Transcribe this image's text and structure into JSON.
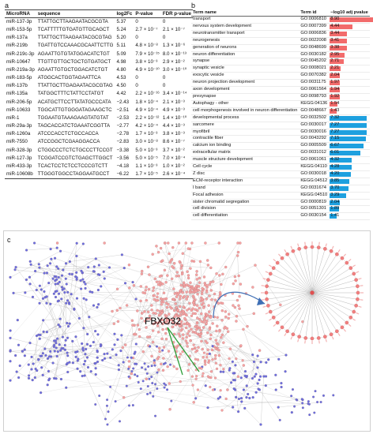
{
  "panel_a": {
    "label": "a",
    "headers": [
      "MicroRNA",
      "sequence",
      "log2Fc",
      "P-value",
      "FDR p-value"
    ],
    "rows": [
      [
        "miR-137-3p",
        "TTATTGCTTAAGAATACGCGTA",
        "5.37",
        "0",
        "0"
      ],
      [
        "miR-153-5p",
        "TCATTTTTGTGATGTTGCAGCT",
        "5.24",
        "2.7 × 10⁻⁷",
        "2.1 × 10⁻⁷"
      ],
      [
        "miR-137a",
        "TTATTGCTTAAGAATACGCGTAG",
        "5.20",
        "0",
        "0"
      ],
      [
        "miR-219b",
        "TGATTGTCCAAACGCAATTCTTG",
        "5.11",
        "4.8 × 10⁻⁸",
        "1.3 × 10⁻⁶"
      ],
      [
        "miR-219c-3p",
        "AGAATTGTGTATGGACATCTGT",
        "5.09",
        "7.9 × 10⁻¹⁵",
        "8.0 × 10⁻¹³"
      ],
      [
        "miR-10647",
        "TTGTTGTTGCTGCTGTGATGCT",
        "4.98",
        "3.8 × 10⁻³",
        "2.9 × 10⁻²"
      ],
      [
        "miR-219a-3p",
        "AGAATTGTGCTGGACATCTGT",
        "4.80",
        "4.9 × 10⁻¹⁰",
        "3.0 × 10⁻¹⁰"
      ],
      [
        "miR-183-5p",
        "ATGGCACTGGTAGAATTCA",
        "4.53",
        "0",
        "0"
      ],
      [
        "miR-137b",
        "TTATTGCTTGAGAATACGCGTAG",
        "4.50",
        "0",
        "0"
      ],
      [
        "miR-135a",
        "TATGGCTTTCTATTCCTATGT",
        "4.42",
        "2.2 × 10⁻¹⁶",
        "3.4 × 10⁻¹⁴"
      ],
      [
        "miR-206-5p",
        "ACATGCTTCCTTATATGCCCATA",
        "−2.43",
        "1.8 × 10⁻⁴",
        "2.1 × 10⁻³"
      ],
      [
        "miR-10633",
        "TGGCATTGTGGGATAGAAGCTC",
        "−2.51",
        "4.9 × 10⁻⁴",
        "4.9 × 10⁻³"
      ],
      [
        "miR-1",
        "TGGAATGTAAAGAAGTATGTAT",
        "−2.53",
        "2.2 × 10⁻¹²",
        "1.4 × 10⁻¹⁰"
      ],
      [
        "miR-29a-3p",
        "TAGCACCATCTGAAATCGGTTA",
        "−2.77",
        "4.2 × 10⁻⁴",
        "4.4 × 10⁻³"
      ],
      [
        "miR-1260a",
        "ATCCCACCTCTGCCACCA",
        "−2.78",
        "1.7 × 10⁻³",
        "3.8 × 10⁻³"
      ],
      [
        "miR-7550",
        "ATCCGGCTCGAAGGACCA",
        "−2.83",
        "3.0 × 10⁻⁸",
        "8.6 × 10⁻⁷"
      ],
      [
        "miR-328-3p",
        "CTGGCCCTCTCTGCCCTTCCGT",
        "−3.38",
        "5.0 × 10⁻³",
        "3.7 × 10⁻²"
      ],
      [
        "miR-127-3p",
        "TCGGATCCGTCTGAGCTTGGCT",
        "−3.56",
        "5.0 × 10⁻⁵",
        "7.0 × 10⁻⁴"
      ],
      [
        "miR-433-3p",
        "TCACTCCTCTCCTCCCGTCTT",
        "−4.18",
        "1.1 × 10⁻³",
        "1.0 × 10⁻²"
      ],
      [
        "miR-10608b",
        "TTGGGTGGCCTAGGAATGCCT",
        "−6.22",
        "1.7 × 10⁻⁵",
        "2.6 × 10⁻⁴"
      ]
    ]
  },
  "panel_b": {
    "label": "b",
    "headers": [
      "Term name",
      "Term id",
      "−log10 adj pvalue"
    ],
    "up_color": "#f26b6b",
    "down_color": "#1ea0df",
    "max_value": 9.0,
    "rows": [
      {
        "name": "transport",
        "id": "GO:0006810",
        "value": "8.90",
        "dir": "up"
      },
      {
        "name": "nervous system development",
        "id": "GO:0007399",
        "value": "4.44",
        "dir": "up"
      },
      {
        "name": "neurotransmitter transport",
        "id": "GO:0006836",
        "value": "3.44",
        "dir": "up"
      },
      {
        "name": "neurogenesis",
        "id": "GO:0022008",
        "value": "3.41",
        "dir": "up"
      },
      {
        "name": "generation of neurons",
        "id": "GO:0048699",
        "value": "3.38",
        "dir": "up"
      },
      {
        "name": "neuron differentiation",
        "id": "GO:0030182",
        "value": "2.95",
        "dir": "up"
      },
      {
        "name": "synapse",
        "id": "GO:0045202",
        "value": "2.71",
        "dir": "up"
      },
      {
        "name": "synaptic vesicle",
        "id": "GO:0008021",
        "value": "2.21",
        "dir": "up"
      },
      {
        "name": "exocytic vesicle",
        "id": "GO:0070382",
        "value": "2.04",
        "dir": "up"
      },
      {
        "name": "neuron projection development",
        "id": "GO:0031175",
        "value": "1.97",
        "dir": "up"
      },
      {
        "name": "axon development",
        "id": "GO:0061564",
        "value": "1.94",
        "dir": "up"
      },
      {
        "name": "presynapse",
        "id": "GO:0098793",
        "value": "1.92",
        "dir": "up"
      },
      {
        "name": "Autophagy - other",
        "id": "KEGG:04136",
        "value": "1.54",
        "dir": "up"
      },
      {
        "name": "cell morphogenesis involved in neuron differentiation",
        "id": "GO:0048667",
        "value": "1.43",
        "dir": "up"
      },
      {
        "name": "developmental process",
        "id": "GO:0032502",
        "value": "7.32",
        "dir": "down"
      },
      {
        "name": "sarcomere",
        "id": "GO:0030017",
        "value": "7.27",
        "dir": "down"
      },
      {
        "name": "myofibril",
        "id": "GO:0030016",
        "value": "7.27",
        "dir": "down"
      },
      {
        "name": "contractile fiber",
        "id": "GO:0043292",
        "value": "7.15",
        "dir": "down"
      },
      {
        "name": "calcium ion binding",
        "id": "GO:0005509",
        "value": "6.67",
        "dir": "down"
      },
      {
        "name": "extracellular matrix",
        "id": "GO:0031012",
        "value": "6.01",
        "dir": "down"
      },
      {
        "name": "muscle structure development",
        "id": "GO:0061061",
        "value": "4.32",
        "dir": "down"
      },
      {
        "name": "Cell cycle",
        "id": "KEGG:04110",
        "value": "4.28",
        "dir": "down"
      },
      {
        "name": "Z disc",
        "id": "GO:0030018",
        "value": "4.20",
        "dir": "down"
      },
      {
        "name": "ECM-receptor interaction",
        "id": "KEGG:04512",
        "value": "3.85",
        "dir": "down"
      },
      {
        "name": "I band",
        "id": "GO:0031674",
        "value": "3.70",
        "dir": "down"
      },
      {
        "name": "Focal adhesion",
        "id": "KEGG:04510",
        "value": "3.29",
        "dir": "down"
      },
      {
        "name": "sister chromatid segregation",
        "id": "GO:0000819",
        "value": "2.04",
        "dir": "down"
      },
      {
        "name": "cell division",
        "id": "GO:0051301",
        "value": "1.89",
        "dir": "down"
      },
      {
        "name": "cell differentiation",
        "id": "GO:0030154",
        "value": "1.41",
        "dir": "down"
      }
    ]
  },
  "panel_c": {
    "label": "c",
    "highlight_gene": "FBXO32",
    "colors": {
      "down_nodes": "#6b6fe0",
      "up_nodes": "#f6a3a3",
      "edges": "#888888",
      "pointer": "#2e9e3a",
      "arrow": "#3f6fb5"
    }
  }
}
